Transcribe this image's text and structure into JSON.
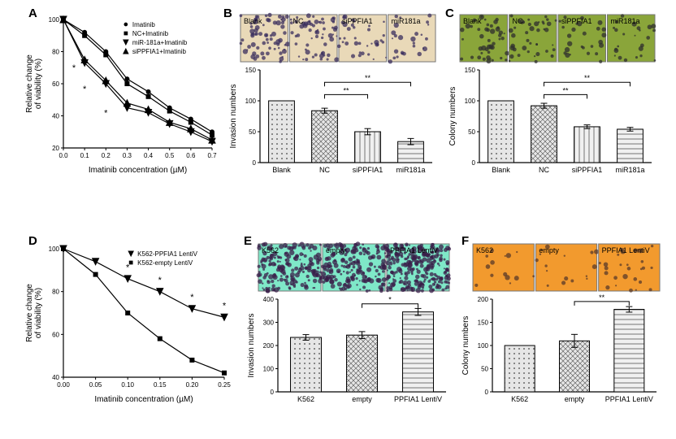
{
  "labels": {
    "A": "A",
    "B": "B",
    "C": "C",
    "D": "D",
    "E": "E",
    "F": "F"
  },
  "panelA": {
    "type": "line",
    "xlabel": "Imatinib concentration (µM)",
    "ylabel_l1": "Relative change",
    "ylabel_l2": "of viability (%)",
    "xlim": [
      0.0,
      0.7
    ],
    "xtick_step": 0.1,
    "ylim": [
      20,
      100
    ],
    "ytick_step": 20,
    "legend": [
      "Imatinib",
      "NC+Imatinib",
      "miR-181a+Imatinib",
      "siPPFIA1+Imatinib"
    ],
    "markers": [
      "circle",
      "square",
      "triangle-down",
      "triangle-up"
    ],
    "series": {
      "Imatinib": [
        100,
        92,
        80,
        63,
        55,
        45,
        38,
        30
      ],
      "NC+Imatinib": [
        100,
        90,
        78,
        60,
        52,
        43,
        36,
        28
      ],
      "miR-181a+Imatinib": [
        100,
        73,
        60,
        45,
        42,
        35,
        30,
        24
      ],
      "siPPFIA1+Imatinib": [
        100,
        75,
        62,
        48,
        44,
        36,
        32,
        25
      ]
    },
    "sig_markers": [
      {
        "x": 0.05,
        "y": 68,
        "text": "*"
      },
      {
        "x": 0.1,
        "y": 55,
        "text": "*"
      },
      {
        "x": 0.2,
        "y": 40,
        "text": "*"
      }
    ],
    "axis_color": "#000",
    "line_color": "#000",
    "marker_size": 4,
    "label_fontsize": 10,
    "tick_fontsize": 8
  },
  "panelB": {
    "type": "bar",
    "ylabel": "Invasion numbers",
    "categories": [
      "Blank",
      "NC",
      "siPPFIA1",
      "miR181a"
    ],
    "values": [
      100,
      84,
      50,
      34
    ],
    "errors": [
      0,
      4,
      5,
      5
    ],
    "ylim": [
      0,
      150
    ],
    "ytick_step": 50,
    "patterns": [
      "dots",
      "diamonds",
      "vlines",
      "hlines"
    ],
    "sig": [
      {
        "from": 1,
        "to": 2,
        "y": 110,
        "text": "**"
      },
      {
        "from": 1,
        "to": 3,
        "y": 130,
        "text": "**"
      }
    ],
    "thumbs": {
      "labels": [
        "Blank",
        "NC",
        "siPPFIA1",
        "miR181a"
      ],
      "bg": "#e9d9b8",
      "dot": "#3a2e5e"
    },
    "bar_fill": "#e6e6e6",
    "bar_stroke": "#000",
    "bar_width": 0.6,
    "axis_color": "#000",
    "label_fontsize": 10,
    "tick_fontsize": 8
  },
  "panelC": {
    "type": "bar",
    "ylabel": "Colony numbers",
    "categories": [
      "Blank",
      "NC",
      "siPPFIA1",
      "miR181a"
    ],
    "values": [
      100,
      92,
      58,
      54
    ],
    "errors": [
      0,
      4,
      3,
      3
    ],
    "ylim": [
      0,
      150
    ],
    "ytick_step": 50,
    "patterns": [
      "dots",
      "diamonds",
      "vlines",
      "hlines"
    ],
    "sig": [
      {
        "from": 1,
        "to": 2,
        "y": 110,
        "text": "**"
      },
      {
        "from": 1,
        "to": 3,
        "y": 130,
        "text": "**"
      }
    ],
    "thumbs": {
      "labels": [
        "Blank",
        "NC",
        "siPPFIA1",
        "miR181a"
      ],
      "bg": "#8aa53a",
      "dot": "#2e2e2e"
    },
    "bar_fill": "#e6e6e6",
    "bar_stroke": "#000",
    "bar_width": 0.6,
    "axis_color": "#000",
    "label_fontsize": 10,
    "tick_fontsize": 8
  },
  "panelD": {
    "type": "line",
    "xlabel": "Imatinib concentration (µM)",
    "ylabel_l1": "Relative change",
    "ylabel_l2": "of viability (%)",
    "xlim": [
      0.0,
      0.25
    ],
    "xtick_step": 0.05,
    "ylim": [
      40,
      100
    ],
    "ytick_step": 20,
    "legend": [
      "K562-PPFIA1 LentiV",
      "K562-empty LentiV"
    ],
    "markers": [
      "triangle-down",
      "square"
    ],
    "series": {
      "K562-PPFIA1 LentiV": [
        100,
        94,
        86,
        80,
        72,
        68
      ],
      "K562-empty LentiV": [
        100,
        88,
        70,
        58,
        48,
        42
      ]
    },
    "sig_markers": [
      {
        "x": 0.1,
        "y": 90,
        "text": "*"
      },
      {
        "x": 0.15,
        "y": 84,
        "text": "*"
      },
      {
        "x": 0.2,
        "y": 76,
        "text": "*"
      },
      {
        "x": 0.25,
        "y": 72,
        "text": "*"
      }
    ],
    "axis_color": "#000",
    "line_color": "#000",
    "marker_size": 4,
    "label_fontsize": 10,
    "tick_fontsize": 8
  },
  "panelE": {
    "type": "bar",
    "ylabel": "Invasion numbers",
    "categories": [
      "K562",
      "empty",
      "PPFIA1 LentiV"
    ],
    "values": [
      235,
      245,
      345
    ],
    "errors": [
      12,
      15,
      15
    ],
    "ylim": [
      0,
      400
    ],
    "ytick_step": 100,
    "patterns": [
      "dots",
      "diamonds",
      "hlines"
    ],
    "sig": [
      {
        "from": 1,
        "to": 2,
        "y": 380,
        "text": "*"
      }
    ],
    "thumbs": {
      "labels": [
        "K562",
        "empty",
        "PPFIA1 LentiV"
      ],
      "bg": "#7fe8c8",
      "dot": "#3a1f4a"
    },
    "bar_fill": "#d9d9d9",
    "bar_stroke": "#000",
    "bar_width": 0.55,
    "axis_color": "#000",
    "label_fontsize": 10,
    "tick_fontsize": 8
  },
  "panelF": {
    "type": "bar",
    "ylabel": "Colony numbers",
    "categories": [
      "K562",
      "empty",
      "PPFIA1 LentiV"
    ],
    "values": [
      100,
      110,
      178
    ],
    "errors": [
      0,
      14,
      6
    ],
    "ylim": [
      0,
      200
    ],
    "ytick_step": 50,
    "patterns": [
      "dots",
      "diamonds",
      "hlines"
    ],
    "sig": [
      {
        "from": 1,
        "to": 2,
        "y": 195,
        "text": "**"
      }
    ],
    "thumbs": {
      "labels": [
        "K562",
        "empty",
        "PPFIA1 LentiV"
      ],
      "bg": "#f29a2e",
      "dot": "#5a3a2a"
    },
    "bar_fill": "#d9d9d9",
    "bar_stroke": "#000",
    "bar_width": 0.55,
    "axis_color": "#000",
    "label_fontsize": 10,
    "tick_fontsize": 8
  }
}
